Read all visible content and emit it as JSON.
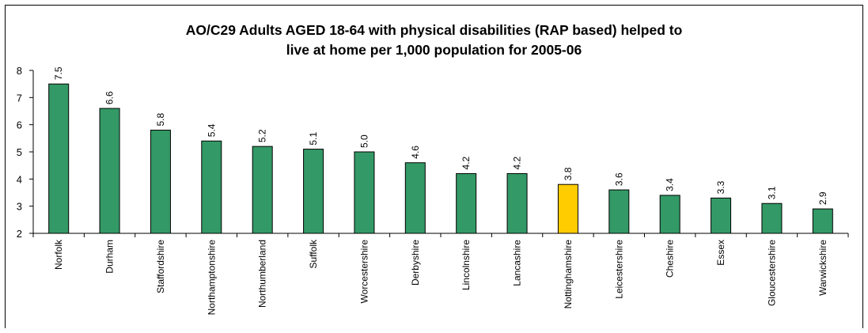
{
  "chart_data": {
    "type": "bar",
    "title_lines": [
      "AO/C29 Adults AGED 18-64 with physical disabilities (RAP based) helped to",
      "live at home per 1,000 population for 2005-06"
    ],
    "xlabel": "",
    "ylabel": "",
    "categories": [
      "Norfolk",
      "Durham",
      "Staffordshire",
      "Northamptonshire",
      "Northumberland",
      "Suffolk",
      "Worcestershire",
      "Derbyshire",
      "Lincolnshire",
      "Lancashire",
      "Nottinghamshire",
      "Leicestershire",
      "Cheshire",
      "Essex",
      "Gloucestershire",
      "Warwickshire"
    ],
    "values": [
      7.5,
      6.6,
      5.8,
      5.4,
      5.2,
      5.1,
      5.0,
      4.6,
      4.2,
      4.2,
      3.8,
      3.6,
      3.4,
      3.3,
      3.1,
      2.9
    ],
    "value_labels": [
      "7.5",
      "6.6",
      "5.8",
      "5.4",
      "5.2",
      "5.1",
      "5.0",
      "4.6",
      "4.2",
      "4.2",
      "3.8",
      "3.6",
      "3.4",
      "3.3",
      "3.1",
      "2.9"
    ],
    "highlight_category": "Nottinghamshire",
    "ylim": [
      2,
      8
    ],
    "yticks": [
      2,
      3,
      4,
      5,
      6,
      7,
      8
    ],
    "grid": false,
    "legend": "none",
    "colors": {
      "bar": "#339966",
      "highlight": "#ffcc00",
      "outline": "#000000"
    }
  }
}
